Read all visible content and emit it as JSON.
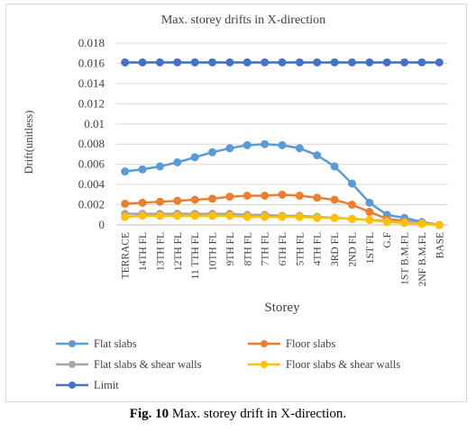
{
  "chart_data": {
    "type": "line",
    "title": "Max. storey drifts in X-direction",
    "xlabel": "Storey",
    "ylabel": "Drift(unitless)",
    "ylim": [
      0,
      0.018
    ],
    "yticks": [
      "0",
      "0.002",
      "0.004",
      "0.006",
      "0.008",
      "0.01",
      "0.012",
      "0.014",
      "0.016",
      "0.018"
    ],
    "categories": [
      "TERRACE",
      "14TH FL",
      "13TH FL",
      "12TH FL",
      "11 TTH FL",
      "10TH FL",
      "9TH FL",
      "8TH FL",
      "7TH FL",
      "6TH FL",
      "5TH FL",
      "4TH FL",
      "3RD FL",
      "2ND FL",
      "1ST FL",
      "G.F",
      "1ST B.M.FL",
      "2NF B.M.FL",
      "BASE"
    ],
    "grid": true,
    "legend_position": "bottom",
    "series": [
      {
        "name": "Flat slabs",
        "color": "#5B9BD5",
        "values": [
          0.0053,
          0.0055,
          0.0058,
          0.0062,
          0.0067,
          0.0072,
          0.0076,
          0.0079,
          0.008,
          0.0079,
          0.0076,
          0.0069,
          0.0058,
          0.0041,
          0.0022,
          0.001,
          0.0007,
          0.0003,
          0.0
        ]
      },
      {
        "name": "Floor slabs",
        "color": "#ED7D31",
        "values": [
          0.0021,
          0.0022,
          0.0023,
          0.0024,
          0.0025,
          0.0026,
          0.0028,
          0.0029,
          0.0029,
          0.003,
          0.0029,
          0.0027,
          0.0025,
          0.002,
          0.0013,
          0.0006,
          0.0004,
          0.0002,
          0.0
        ]
      },
      {
        "name": "Flat slabs & shear walls",
        "color": "#A5A5A5",
        "values": [
          0.0011,
          0.0011,
          0.0011,
          0.0011,
          0.0011,
          0.0011,
          0.0011,
          0.001,
          0.001,
          0.0009,
          0.0009,
          0.0008,
          0.0007,
          0.0006,
          0.0005,
          0.0004,
          0.0003,
          0.0002,
          0.0
        ]
      },
      {
        "name": "Floor slabs & shear walls",
        "color": "#FFC000",
        "values": [
          0.0008,
          0.0009,
          0.0009,
          0.0009,
          0.0009,
          0.0009,
          0.0009,
          0.0008,
          0.0008,
          0.0008,
          0.0008,
          0.0007,
          0.0007,
          0.0006,
          0.0005,
          0.0003,
          0.0002,
          0.0001,
          0.0
        ]
      },
      {
        "name": "Limit",
        "color": "#4472C4",
        "values": [
          0.0161,
          0.0161,
          0.0161,
          0.0161,
          0.0161,
          0.0161,
          0.0161,
          0.0161,
          0.0161,
          0.0161,
          0.0161,
          0.0161,
          0.0161,
          0.0161,
          0.0161,
          0.0161,
          0.0161,
          0.0161,
          0.0161
        ]
      }
    ]
  },
  "caption": {
    "label": "Fig. 10",
    "text": " Max. storey drift in X-direction."
  }
}
